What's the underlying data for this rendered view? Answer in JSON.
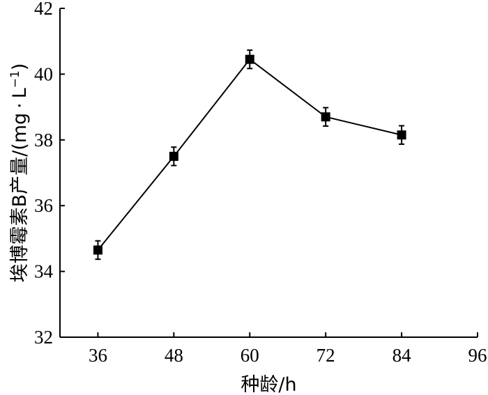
{
  "chart_data": {
    "type": "line",
    "xlabel": "种龄/h",
    "ylabel": "埃博霉素B产量/(mg·L⁻¹)",
    "ylabel_main": "埃博霉素B产量/(mg",
    "ylabel_sep": "·",
    "ylabel_unit": "L",
    "ylabel_sup": "−1",
    "ylabel_close": ")",
    "xlim": [
      30,
      96
    ],
    "ylim": [
      32,
      42
    ],
    "x_ticks": [
      36,
      48,
      60,
      72,
      84,
      96
    ],
    "y_ticks": [
      32,
      34,
      36,
      38,
      40,
      42
    ],
    "x_tick_labels": [
      "36",
      "48",
      "60",
      "72",
      "84",
      "96"
    ],
    "y_tick_labels": [
      "32",
      "34",
      "36",
      "38",
      "40",
      "42"
    ],
    "series": [
      {
        "x": [
          36,
          48,
          60,
          72,
          84
        ],
        "y": [
          34.65,
          37.5,
          40.45,
          38.7,
          38.15
        ],
        "error": [
          0.28,
          0.28,
          0.28,
          0.28,
          0.28
        ],
        "marker": "square",
        "color": "#000000"
      }
    ],
    "grid": false
  }
}
